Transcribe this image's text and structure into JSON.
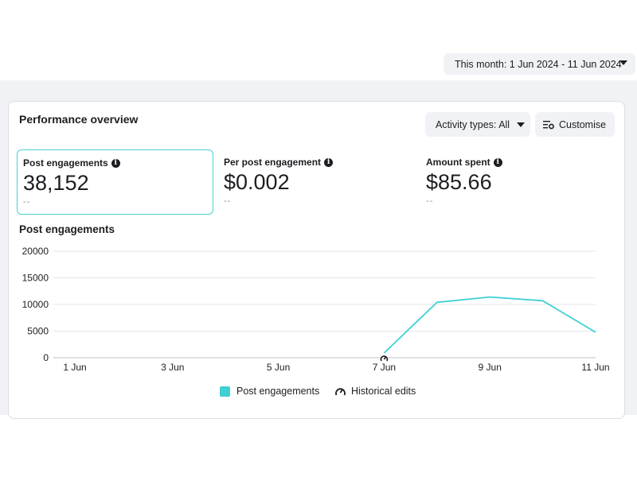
{
  "header": {
    "date_range_label": "This month: 1 Jun 2024 - 11 Jun 2024"
  },
  "card": {
    "title": "Performance overview",
    "activity_button_label": "Activity types: All",
    "customise_button_label": "Customise"
  },
  "metrics": [
    {
      "label": "Post engagements",
      "value": "38,152",
      "sub": "--",
      "selected": true
    },
    {
      "label": "Per post engagement",
      "value": "$0.002",
      "sub": "--",
      "selected": false
    },
    {
      "label": "Amount spent",
      "value": "$85.66",
      "sub": "--",
      "selected": false
    }
  ],
  "chart_section_title": "Post engagements",
  "legend": {
    "series_label": "Post engagements",
    "historical_label": "Historical edits"
  },
  "colors": {
    "series": "#3fd0d4",
    "selected_border": "#48d1cf"
  },
  "chart_data": {
    "type": "line",
    "x": [
      "1 Jun",
      "2 Jun",
      "3 Jun",
      "4 Jun",
      "5 Jun",
      "6 Jun",
      "7 Jun",
      "8 Jun",
      "9 Jun",
      "10 Jun",
      "11 Jun"
    ],
    "x_tick_labels": [
      "1 Jun",
      "3 Jun",
      "5 Jun",
      "7 Jun",
      "9 Jun",
      "11 Jun"
    ],
    "series": [
      {
        "name": "Post engagements",
        "values": [
          null,
          null,
          null,
          null,
          null,
          null,
          900,
          10400,
          11400,
          10700,
          4800
        ]
      }
    ],
    "ylim": [
      0,
      20000
    ],
    "y_ticks": [
      0,
      5000,
      10000,
      15000,
      20000
    ],
    "y_tick_labels": [
      "0",
      "5000",
      "10000",
      "15000",
      "20000"
    ],
    "grid": true,
    "historical_edit_markers": [
      "7 Jun"
    ]
  }
}
